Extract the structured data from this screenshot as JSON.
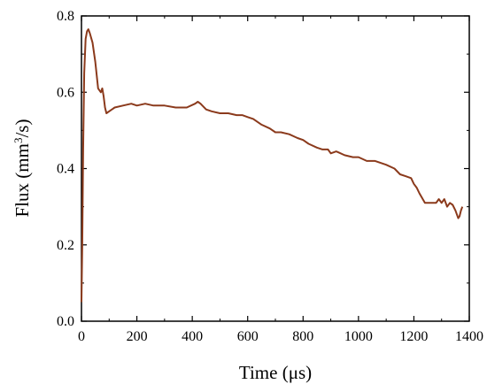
{
  "chart_data": {
    "type": "line",
    "xlabel": "Time (μs)",
    "ylabel_parts": {
      "prefix": "Flux (mm",
      "superscript": "3",
      "suffix": "/s)"
    },
    "xlim": [
      0,
      1400
    ],
    "ylim": [
      0,
      0.8
    ],
    "x_ticks": [
      0,
      200,
      400,
      600,
      800,
      1000,
      1200,
      1400
    ],
    "x_tick_labels": [
      "0",
      "200",
      "400",
      "600",
      "800",
      "1000",
      "1200",
      "1400"
    ],
    "y_ticks": [
      0,
      0.2,
      0.4,
      0.6,
      0.8
    ],
    "y_tick_labels": [
      "0.0",
      "0.2",
      "0.4",
      "0.6",
      "0.8"
    ],
    "grid": false,
    "line_color": "#8b3a1c",
    "series": [
      {
        "x": [
          0,
          3,
          6,
          10,
          15,
          20,
          25,
          30,
          40,
          50,
          60,
          70,
          75,
          80,
          85,
          90,
          100,
          120,
          150,
          180,
          200,
          230,
          260,
          300,
          340,
          380,
          410,
          420,
          430,
          450,
          470,
          500,
          530,
          560,
          580,
          600,
          620,
          650,
          680,
          700,
          720,
          750,
          780,
          800,
          820,
          850,
          870,
          890,
          900,
          920,
          950,
          980,
          1000,
          1030,
          1060,
          1100,
          1130,
          1150,
          1170,
          1190,
          1200,
          1210,
          1220,
          1240,
          1260,
          1280,
          1290,
          1300,
          1310,
          1320,
          1330,
          1340,
          1350,
          1360,
          1365,
          1370,
          1375
        ],
        "y": [
          0.05,
          0.2,
          0.45,
          0.65,
          0.74,
          0.76,
          0.765,
          0.755,
          0.73,
          0.68,
          0.61,
          0.6,
          0.61,
          0.59,
          0.56,
          0.545,
          0.55,
          0.56,
          0.565,
          0.57,
          0.565,
          0.57,
          0.565,
          0.565,
          0.56,
          0.56,
          0.57,
          0.575,
          0.57,
          0.555,
          0.55,
          0.545,
          0.545,
          0.54,
          0.54,
          0.535,
          0.53,
          0.515,
          0.505,
          0.495,
          0.495,
          0.49,
          0.48,
          0.475,
          0.465,
          0.455,
          0.45,
          0.45,
          0.44,
          0.445,
          0.435,
          0.43,
          0.43,
          0.42,
          0.42,
          0.41,
          0.4,
          0.385,
          0.38,
          0.375,
          0.36,
          0.35,
          0.335,
          0.31,
          0.31,
          0.31,
          0.32,
          0.31,
          0.32,
          0.3,
          0.31,
          0.305,
          0.29,
          0.27,
          0.275,
          0.29,
          0.3
        ]
      }
    ]
  }
}
